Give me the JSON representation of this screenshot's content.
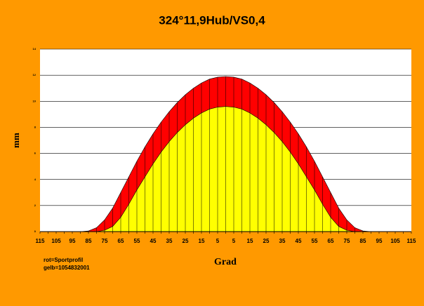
{
  "chart_data": {
    "type": "area",
    "title": "324°11,9Hub/VS0,4",
    "y_label": "mm",
    "x_label": "Grad",
    "categories": [
      "115",
      null,
      "105",
      null,
      "95",
      null,
      "85",
      null,
      "75",
      null,
      "65",
      null,
      "55",
      null,
      "45",
      null,
      "35",
      null,
      "25",
      null,
      "15",
      null,
      "5",
      null,
      "5",
      null,
      "15",
      null,
      "25",
      null,
      "35",
      null,
      "45",
      null,
      "55",
      null,
      "65",
      null,
      "75",
      null,
      "85",
      null,
      "95",
      null,
      "105",
      null,
      "115"
    ],
    "series": [
      {
        "name": "rot=Sportprofil",
        "color": "#ff0000",
        "values": [
          0,
          0,
          0,
          0,
          0,
          0,
          0.05,
          0.3,
          0.9,
          1.8,
          3.0,
          4.2,
          5.4,
          6.5,
          7.5,
          8.4,
          9.2,
          9.9,
          10.5,
          11.0,
          11.4,
          11.7,
          11.85,
          11.9,
          11.85,
          11.7,
          11.4,
          11.0,
          10.5,
          9.9,
          9.2,
          8.4,
          7.5,
          6.5,
          5.4,
          4.2,
          3.0,
          1.8,
          0.9,
          0.3,
          0.05,
          0,
          0,
          0,
          0,
          0,
          0
        ]
      },
      {
        "name": "gelb=1054832001",
        "color": "#ffff00",
        "values": [
          0,
          0,
          0,
          0,
          0,
          0,
          0,
          0,
          0.1,
          0.4,
          1.1,
          2.1,
          3.2,
          4.2,
          5.2,
          6.1,
          6.9,
          7.6,
          8.2,
          8.7,
          9.1,
          9.4,
          9.55,
          9.6,
          9.55,
          9.4,
          9.1,
          8.7,
          8.2,
          7.6,
          6.9,
          6.1,
          5.2,
          4.2,
          3.2,
          2.1,
          1.1,
          0.4,
          0.1,
          0,
          0,
          0,
          0,
          0,
          0,
          0,
          0
        ]
      }
    ],
    "ylim": [
      0,
      14
    ],
    "yticks": [
      0,
      2,
      4,
      6,
      8,
      10,
      12,
      14
    ],
    "grid": true,
    "background": "#ff9900",
    "plot_background": "#ffffff"
  }
}
